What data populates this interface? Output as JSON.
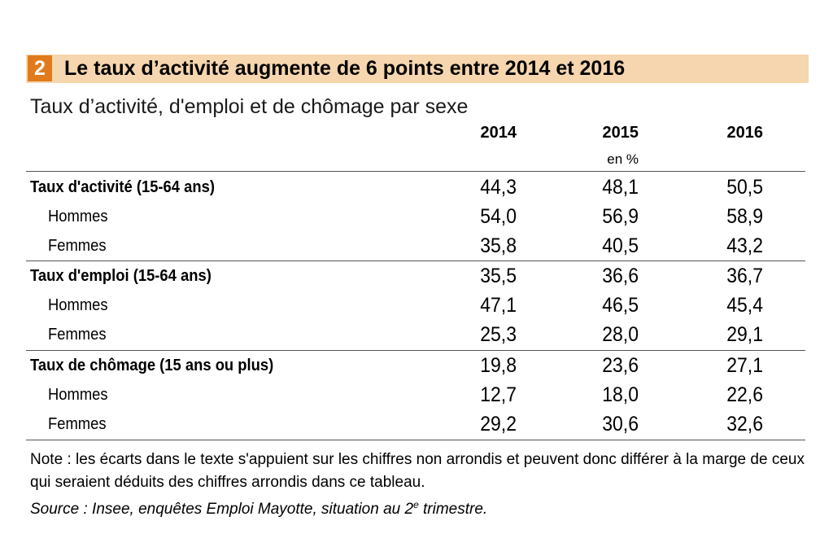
{
  "figure": {
    "number": "2",
    "title": "Le taux d’activité augmente de 6 points entre 2014 et 2016",
    "subtitle": "Taux d’activité, d'emploi et de chômage par sexe"
  },
  "table": {
    "columns": [
      "2014",
      "2015",
      "2016"
    ],
    "unit": "en %",
    "groups": [
      {
        "label": "Taux d'activité (15-64 ans)",
        "values": [
          "44,3",
          "48,1",
          "50,5"
        ],
        "rows": [
          {
            "label": "Hommes",
            "values": [
              "54,0",
              "56,9",
              "58,9"
            ]
          },
          {
            "label": "Femmes",
            "values": [
              "35,8",
              "40,5",
              "43,2"
            ]
          }
        ]
      },
      {
        "label": "Taux d'emploi (15-64 ans)",
        "values": [
          "35,5",
          "36,6",
          "36,7"
        ],
        "rows": [
          {
            "label": "Hommes",
            "values": [
              "47,1",
              "46,5",
              "45,4"
            ]
          },
          {
            "label": "Femmes",
            "values": [
              "25,3",
              "28,0",
              "29,1"
            ]
          }
        ]
      },
      {
        "label": "Taux de chômage (15 ans ou plus)",
        "values": [
          "19,8",
          "23,6",
          "27,1"
        ],
        "rows": [
          {
            "label": "Hommes",
            "values": [
              "12,7",
              "18,0",
              "22,6"
            ]
          },
          {
            "label": "Femmes",
            "values": [
              "29,2",
              "30,6",
              "32,6"
            ]
          }
        ]
      }
    ]
  },
  "note": "Note : les écarts dans le texte s'appuient sur les chiffres non arrondis et peuvent donc différer à la marge de ceux qui seraient déduits des chiffres arrondis dans ce tableau.",
  "source": {
    "prefix": "Source : Insee, enquêtes Emploi Mayotte, situation au 2",
    "superscript": "e",
    "suffix": " trimestre."
  },
  "colors": {
    "title_band": "#f6d6ae",
    "number_badge": "#e07b1d"
  }
}
